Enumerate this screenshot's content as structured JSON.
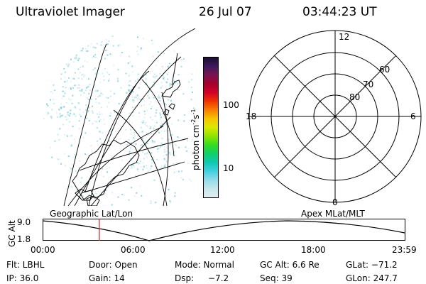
{
  "header": {
    "instrument": "Ultraviolet Imager",
    "date": "26 Jul 07",
    "time": "03:44:23 UT"
  },
  "colorbar": {
    "unit": "photon cm",
    "unit_exp1": "-2",
    "unit_s": "s",
    "unit_exp2": "-1",
    "ticks": [
      "100",
      "10"
    ],
    "colors": [
      "#1a0d2e",
      "#3d1a5e",
      "#7a1450",
      "#a3002e",
      "#d4002a",
      "#ee3300",
      "#f77e00",
      "#f7c400",
      "#d9e800",
      "#8ee400",
      "#32dc20",
      "#10d06a",
      "#10c8b0",
      "#40d0e0",
      "#90dce8",
      "#c6e6ec",
      "#e2eef0"
    ]
  },
  "polar": {
    "lat_labels": [
      "80",
      "70",
      "60"
    ],
    "mlt_labels": {
      "top": "12",
      "left": "18",
      "right": "6",
      "bottom": "0"
    }
  },
  "timeline": {
    "label_left": "Geographic Lat/Lon",
    "label_right": "Apex MLat/MLT",
    "y_axis_label": "GC Alt",
    "y_ticks": [
      "9.0",
      "1.8"
    ],
    "x_ticks": [
      "00:00",
      "06:00",
      "12:00",
      "18:00",
      "23:59"
    ],
    "marker_time": "03:44",
    "marker_color": "#d42020"
  },
  "info": {
    "row1": {
      "flt": "Flt: LBHL",
      "door": "Door: Open",
      "mode": "Mode: Normal",
      "gcalt": "GC Alt: 6.6 Re",
      "glat": "GLat: −71.2"
    },
    "row2": {
      "ip": "IP: 36.0",
      "gain": "Gain: 14",
      "dsp_label": "Dsp:",
      "dsp_value": "−7.2",
      "seq": "Seq: 39",
      "glon": "GLon: 247.7"
    }
  }
}
